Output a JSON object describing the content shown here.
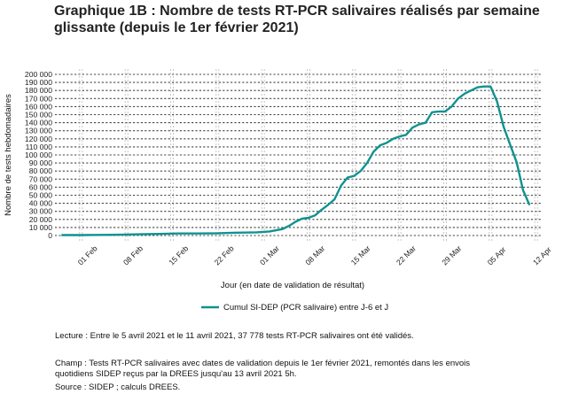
{
  "title": "Graphique 1B : Nombre de tests RT-PCR salivaires réalisés par semaine glissante (depuis le 1er février 2021)",
  "chart_data": {
    "type": "line",
    "ylabel": "Nombre de tests hebdomadaires",
    "xlabel": "Jour (en date de validation de résultat)",
    "ylim": [
      0,
      200000
    ],
    "y_ticks": [
      0,
      10000,
      20000,
      30000,
      40000,
      50000,
      60000,
      70000,
      80000,
      90000,
      100000,
      110000,
      120000,
      130000,
      140000,
      150000,
      160000,
      170000,
      180000,
      190000,
      200000
    ],
    "y_tick_labels": [
      "0",
      "10 000",
      "20 000",
      "30 000",
      "40 000",
      "50 000",
      "60 000",
      "70 000",
      "80 000",
      "90 000",
      "100 000",
      "110 000",
      "120 000",
      "130 000",
      "140 000",
      "150 000",
      "160 000",
      "170 000",
      "180 000",
      "190 000",
      "200 000"
    ],
    "x_start": "2021-02-01",
    "x_end": "2021-04-11",
    "x_ticks": [
      {
        "date": "2021-02-01",
        "label": "01 Feb"
      },
      {
        "date": "2021-02-08",
        "label": "08 Feb"
      },
      {
        "date": "2021-02-15",
        "label": "15 Feb"
      },
      {
        "date": "2021-02-22",
        "label": "22 Feb"
      },
      {
        "date": "2021-03-01",
        "label": "01 Mar"
      },
      {
        "date": "2021-03-08",
        "label": "08 Mar"
      },
      {
        "date": "2021-03-15",
        "label": "15 Mar"
      },
      {
        "date": "2021-03-22",
        "label": "22 Mar"
      },
      {
        "date": "2021-03-29",
        "label": "29 Mar"
      },
      {
        "date": "2021-04-05",
        "label": "05 Apr"
      },
      {
        "date": "2021-04-12",
        "label": "12 Apr"
      }
    ],
    "grid": true,
    "legend_position": "bottom",
    "series": [
      {
        "name": "Cumul SI-DEP (PCR salivaire) entre J-6 et J",
        "color": "#0f9290",
        "dates": [
          "2021-01-29",
          "2021-02-01",
          "2021-02-04",
          "2021-02-07",
          "2021-02-10",
          "2021-02-13",
          "2021-02-16",
          "2021-02-19",
          "2021-02-22",
          "2021-02-25",
          "2021-02-28",
          "2021-03-02",
          "2021-03-04",
          "2021-03-05",
          "2021-03-06",
          "2021-03-07",
          "2021-03-08",
          "2021-03-09",
          "2021-03-10",
          "2021-03-11",
          "2021-03-12",
          "2021-03-13",
          "2021-03-14",
          "2021-03-15",
          "2021-03-16",
          "2021-03-17",
          "2021-03-18",
          "2021-03-19",
          "2021-03-20",
          "2021-03-21",
          "2021-03-22",
          "2021-03-23",
          "2021-03-24",
          "2021-03-25",
          "2021-03-26",
          "2021-03-27",
          "2021-03-28",
          "2021-03-29",
          "2021-03-30",
          "2021-03-31",
          "2021-04-01",
          "2021-04-02",
          "2021-04-03",
          "2021-04-04",
          "2021-04-05",
          "2021-04-06",
          "2021-04-07",
          "2021-04-08",
          "2021-04-09",
          "2021-04-10",
          "2021-04-11"
        ],
        "values": [
          500,
          600,
          800,
          1000,
          1500,
          2000,
          2500,
          2500,
          2800,
          3500,
          4000,
          5000,
          8000,
          12000,
          17000,
          21000,
          22000,
          25000,
          32000,
          38000,
          45000,
          62000,
          72000,
          74000,
          80000,
          90000,
          104000,
          112000,
          115000,
          120000,
          123000,
          125000,
          134000,
          138000,
          140000,
          153000,
          154000,
          154000,
          160000,
          170000,
          176000,
          180000,
          184000,
          185000,
          185000,
          166000,
          135000,
          113000,
          91000,
          56000,
          37778
        ]
      }
    ],
    "annotation_lines": [
      "Lecture : Entre le 5 avril 2021 et le 11 avril 2021, 37 778 tests RT-PCR salivaires ont été validés."
    ]
  },
  "notes": {
    "lecture": "Lecture : Entre le 5 avril 2021 et le 11 avril 2021, 37 778 tests RT-PCR salivaires ont été validés.",
    "champ_1": "Champ : Tests RT-PCR salivaires avec dates de validation depuis le 1er février 2021, remontés dans les envois",
    "champ_2": "quotidiens SIDEP reçus par la DREES jusqu'au 13 avril 2021 5h.",
    "source": "Source : SIDEP ; calculs DREES."
  }
}
